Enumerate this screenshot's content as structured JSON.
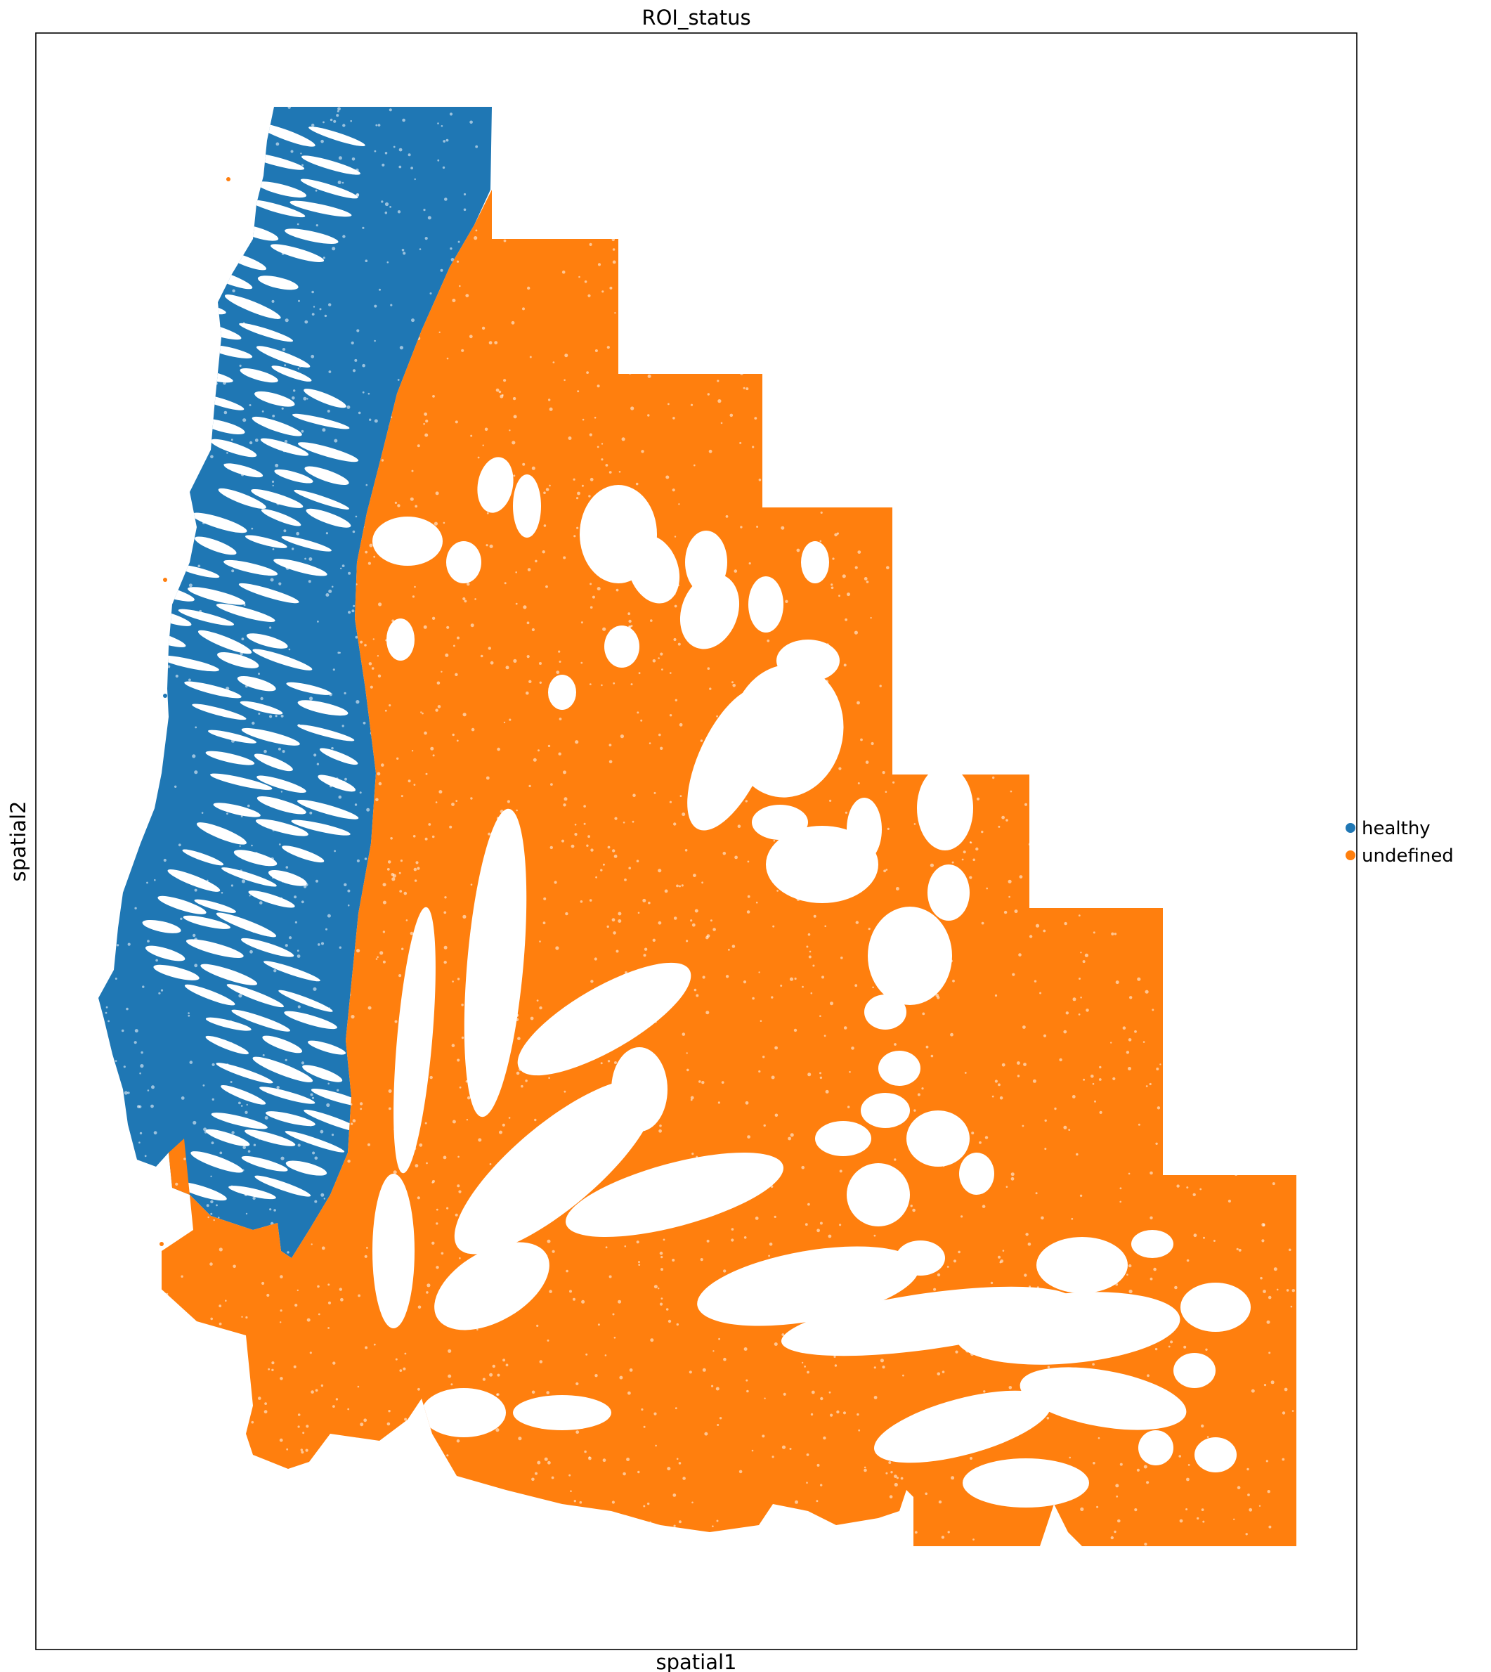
{
  "chart_data": {
    "type": "scatter",
    "title": "ROI_status",
    "xlabel": "spatial1",
    "ylabel": "spatial2",
    "ticks_shown": false,
    "grid": false,
    "legend_placement": "right",
    "legend": [
      {
        "name": "healthy",
        "color": "#1f77b4"
      },
      {
        "name": "undefined",
        "color": "#ff7f0e"
      }
    ],
    "series": [
      {
        "name": "healthy",
        "color": "#1f77b4"
      },
      {
        "name": "undefined",
        "color": "#ff7f0e"
      }
    ]
  }
}
